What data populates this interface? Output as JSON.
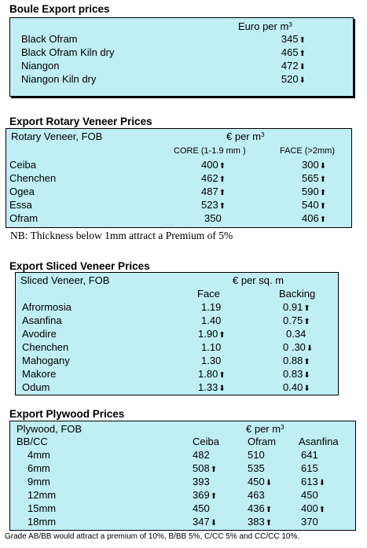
{
  "boule": {
    "title": "Boule Export prices",
    "unit": "Euro per m",
    "unit_sup": "3",
    "rows": [
      {
        "name": "Black Ofram",
        "value": "345",
        "trend": "up"
      },
      {
        "name": "Black Ofram  Kiln dry",
        "value": "465",
        "trend": "up"
      },
      {
        "name": "Niangon",
        "value": "472",
        "trend": "down"
      },
      {
        "name": "Niangon Kiln dry",
        "value": "520",
        "trend": "down"
      }
    ]
  },
  "rotary": {
    "title": "Export Rotary Veneer Prices",
    "subtitle": "Rotary Veneer,  FOB",
    "unit": "€  per m",
    "unit_sup": "3",
    "col1": "CORE (1-1.9 mm )",
    "col2": "FACE (>2mm)",
    "rows": [
      {
        "name": "Ceiba",
        "core": "400",
        "core_trend": "up",
        "face": "300",
        "face_trend": "down"
      },
      {
        "name": "Chenchen",
        "core": "462",
        "core_trend": "up",
        "face": "565",
        "face_trend": "up"
      },
      {
        "name": "Ogea",
        "core": "487",
        "core_trend": "up",
        "face": "590",
        "face_trend": "up"
      },
      {
        "name": "Essa",
        "core": "523",
        "core_trend": "up",
        "face": "540",
        "face_trend": "up"
      },
      {
        "name": "Ofram",
        "core": "350",
        "core_trend": "",
        "face": "406",
        "face_trend": "up"
      }
    ],
    "note": "NB: Thickness below 1mm attract a Premium of 5%"
  },
  "sliced": {
    "title": "Export Sliced Veneer Prices",
    "subtitle": "Sliced Veneer, FOB",
    "unit": "€ per sq. m",
    "col1": "Face",
    "col2": "Backing",
    "rows": [
      {
        "name": "Afrormosia",
        "face": "1.19",
        "face_trend": "",
        "backing": "0.91",
        "backing_trend": "up"
      },
      {
        "name": "Asanfina",
        "face": "1.40",
        "face_trend": "",
        "backing": "0.75",
        "backing_trend": "up"
      },
      {
        "name": "Avodire",
        "face": "1.90",
        "face_trend": "up",
        "backing": "0.34",
        "backing_trend": ""
      },
      {
        "name": "Chenchen",
        "face": "1.10",
        "face_trend": "",
        "backing": "0 .30",
        "backing_trend": "down"
      },
      {
        "name": "Mahogany",
        "face": "1.30",
        "face_trend": "",
        "backing": "0.88",
        "backing_trend": "up"
      },
      {
        "name": "Makore",
        "face": "1.80",
        "face_trend": "up",
        "backing": "0.83",
        "backing_trend": "down"
      },
      {
        "name": "Odum",
        "face": "1.33",
        "face_trend": "down",
        "backing": "0.40",
        "backing_trend": "down"
      }
    ]
  },
  "plywood": {
    "title": "Export Plywood Prices",
    "subtitle": "Plywood, FOB",
    "unit": "€ per m",
    "unit_sup": "3",
    "grade": "BB/CC",
    "cols": [
      "Ceiba",
      "Ofram",
      "Asanfina"
    ],
    "rows": [
      {
        "size": "4mm",
        "vals": [
          {
            "v": "482",
            "t": ""
          },
          {
            "v": "510",
            "t": ""
          },
          {
            "v": "641",
            "t": ""
          }
        ]
      },
      {
        "size": "6mm",
        "vals": [
          {
            "v": "508",
            "t": "up"
          },
          {
            "v": "535",
            "t": ""
          },
          {
            "v": "615",
            "t": ""
          }
        ]
      },
      {
        "size": "9mm",
        "vals": [
          {
            "v": "393",
            "t": ""
          },
          {
            "v": "450",
            "t": "down"
          },
          {
            "v": "613",
            "t": "down"
          }
        ]
      },
      {
        "size": "12mm",
        "vals": [
          {
            "v": "369",
            "t": "up"
          },
          {
            "v": "463",
            "t": ""
          },
          {
            "v": "450",
            "t": ""
          }
        ]
      },
      {
        "size": "15mm",
        "vals": [
          {
            "v": "450",
            "t": ""
          },
          {
            "v": "436",
            "t": "up"
          },
          {
            "v": "400",
            "t": "up"
          }
        ]
      },
      {
        "size": "18mm",
        "vals": [
          {
            "v": "347",
            "t": "down"
          },
          {
            "v": "383",
            "t": "up"
          },
          {
            "v": "370",
            "t": ""
          }
        ]
      }
    ],
    "note": "Grade AB/BB would attract a premium of 10%, B/BB 5%, C/CC 5% and CC/CC 10%."
  }
}
